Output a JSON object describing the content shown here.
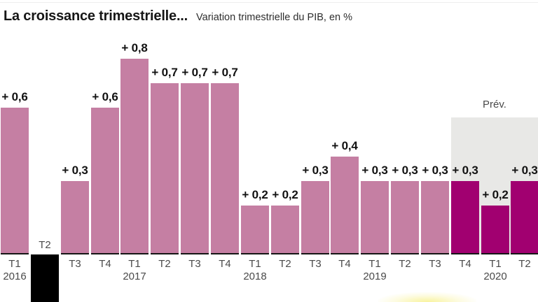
{
  "header": {
    "title": "La croissance trimestrielle...",
    "subtitle": "Variation trimestrielle du PIB, en %"
  },
  "chart_data": {
    "type": "bar",
    "title": "La croissance trimestrielle...",
    "subtitle": "Variation trimestrielle du PIB, en %",
    "unit": "%",
    "grid": false,
    "legend": "none",
    "forecast_label": "Prév.",
    "forecast_start_index": 15,
    "forecast_region_covers": [
      "T4 2019",
      "T1 2020",
      "T2 2020"
    ],
    "colors": {
      "actual": "#c57fa3",
      "forecast": "#a10070",
      "negative_clipped": "#000000",
      "forecast_region_bg": "#e8e8e6",
      "value_text": "#121212",
      "tick_text": "#4a4a4a",
      "logo_glow": "#f3e94e"
    },
    "bars": [
      {
        "quarter": "T1",
        "year": "2016",
        "value": 0.6,
        "value_label": "+ 0,6",
        "kind": "actual"
      },
      {
        "quarter": "T2",
        "year": null,
        "value": null,
        "value_label": "",
        "kind": "negative_clipped"
      },
      {
        "quarter": "T3",
        "year": null,
        "value": 0.3,
        "value_label": "+ 0,3",
        "kind": "actual"
      },
      {
        "quarter": "T4",
        "year": null,
        "value": 0.6,
        "value_label": "+ 0,6",
        "kind": "actual"
      },
      {
        "quarter": "T1",
        "year": "2017",
        "value": 0.8,
        "value_label": "+ 0,8",
        "kind": "actual"
      },
      {
        "quarter": "T2",
        "year": null,
        "value": 0.7,
        "value_label": "+ 0,7",
        "kind": "actual"
      },
      {
        "quarter": "T3",
        "year": null,
        "value": 0.7,
        "value_label": "+ 0,7",
        "kind": "actual"
      },
      {
        "quarter": "T4",
        "year": null,
        "value": 0.7,
        "value_label": "+ 0,7",
        "kind": "actual"
      },
      {
        "quarter": "T1",
        "year": "2018",
        "value": 0.2,
        "value_label": "+ 0,2",
        "kind": "actual"
      },
      {
        "quarter": "T2",
        "year": null,
        "value": 0.2,
        "value_label": "+ 0,2",
        "kind": "actual"
      },
      {
        "quarter": "T3",
        "year": null,
        "value": 0.3,
        "value_label": "+ 0,3",
        "kind": "actual"
      },
      {
        "quarter": "T4",
        "year": null,
        "value": 0.4,
        "value_label": "+ 0,4",
        "kind": "actual"
      },
      {
        "quarter": "T1",
        "year": "2019",
        "value": 0.3,
        "value_label": "+ 0,3",
        "kind": "actual"
      },
      {
        "quarter": "T2",
        "year": null,
        "value": 0.3,
        "value_label": "+ 0,3",
        "kind": "actual"
      },
      {
        "quarter": "T3",
        "year": null,
        "value": 0.3,
        "value_label": "+ 0,3",
        "kind": "actual"
      },
      {
        "quarter": "T4",
        "year": null,
        "value": 0.3,
        "value_label": "+ 0,3",
        "kind": "forecast"
      },
      {
        "quarter": "T1",
        "year": "2020",
        "value": 0.2,
        "value_label": "+ 0,2",
        "kind": "forecast"
      },
      {
        "quarter": "T2",
        "year": null,
        "value": 0.3,
        "value_label": "+ 0,3",
        "kind": "forecast"
      }
    ]
  }
}
